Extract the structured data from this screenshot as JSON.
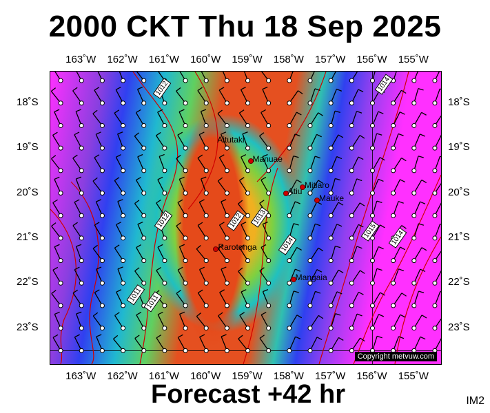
{
  "title": "2000 CKT Thu 18 Sep 2025",
  "footer": "Forecast +42 hr",
  "image_code": "IM2",
  "copyright": "Copyright metvuw.com",
  "lon_labels": [
    "163˚W",
    "162˚W",
    "161˚W",
    "160˚W",
    "159˚W",
    "158˚W",
    "157˚W",
    "156˚W",
    "155˚W"
  ],
  "lat_labels": [
    "18˚S",
    "19˚S",
    "20˚S",
    "21˚S",
    "22˚S",
    "23˚S"
  ],
  "places": [
    {
      "name": "Aitutaki",
      "lon": -159.8,
      "lat": -18.85,
      "dot": false
    },
    {
      "name": "Manuae",
      "lon": -158.95,
      "lat": -19.27,
      "dot": true
    },
    {
      "name": "Atiu",
      "lon": -158.1,
      "lat": -19.99,
      "dot": true
    },
    {
      "name": "Mitiaro",
      "lon": -157.7,
      "lat": -19.85,
      "dot": true
    },
    {
      "name": "Mauke",
      "lon": -157.35,
      "lat": -20.15,
      "dot": true
    },
    {
      "name": "Rarotonga",
      "lon": -159.78,
      "lat": -21.23,
      "dot": true
    },
    {
      "name": "Mangaia",
      "lon": -157.92,
      "lat": -21.9,
      "dot": true
    }
  ],
  "isobar_labels": [
    "1012",
    "1014",
    "1012",
    "1012",
    "1013",
    "1014",
    "1015",
    "1014",
    "1011",
    "1011"
  ],
  "colors": {
    "rain_heavy": "#e54a1a",
    "pressure_line": "#d00000"
  }
}
